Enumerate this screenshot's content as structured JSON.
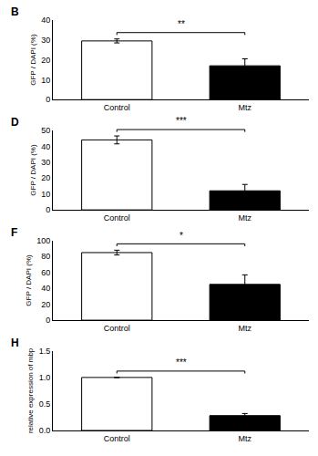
{
  "chart_data": [
    {
      "type": "bar",
      "title": "B",
      "categories": [
        "Control",
        "Mtz"
      ],
      "values": [
        29.5,
        17.0
      ],
      "errors": [
        1.0,
        3.5
      ],
      "colors": [
        "white",
        "black"
      ],
      "ylabel": "GFP / DAPI (%)",
      "ylim": [
        0,
        40
      ],
      "yticks": [
        0,
        10,
        20,
        30,
        40
      ],
      "grid": false,
      "significance": "**"
    },
    {
      "type": "bar",
      "title": "D",
      "categories": [
        "Control",
        "Mtz"
      ],
      "values": [
        44.0,
        12.0
      ],
      "errors": [
        2.5,
        4.0
      ],
      "colors": [
        "white",
        "black"
      ],
      "ylabel": "GFP / DAPI (%)",
      "ylim": [
        0,
        50
      ],
      "yticks": [
        0,
        10,
        20,
        30,
        40,
        50
      ],
      "grid": false,
      "significance": "***"
    },
    {
      "type": "bar",
      "title": "F",
      "categories": [
        "Control",
        "Mtz"
      ],
      "values": [
        85.0,
        45.0
      ],
      "errors": [
        3.0,
        12.0
      ],
      "colors": [
        "white",
        "black"
      ],
      "ylabel": "GFP / DAPI (%)",
      "ylim": [
        0,
        100
      ],
      "yticks": [
        0,
        20,
        40,
        60,
        80,
        100
      ],
      "grid": false,
      "significance": "*"
    },
    {
      "type": "bar",
      "title": "H",
      "categories": [
        "Control",
        "Mtz"
      ],
      "values": [
        1.0,
        0.28
      ],
      "errors": [
        0.0,
        0.04
      ],
      "colors": [
        "white",
        "black"
      ],
      "ylabel": "relative expression of mbp",
      "ylim": [
        0,
        1.5
      ],
      "yticks": [
        {
          "value": 0,
          "label": "0.0"
        },
        0.5,
        {
          "value": 1,
          "label": "1.0"
        },
        1.5
      ],
      "grid": false,
      "significance": "***"
    }
  ]
}
